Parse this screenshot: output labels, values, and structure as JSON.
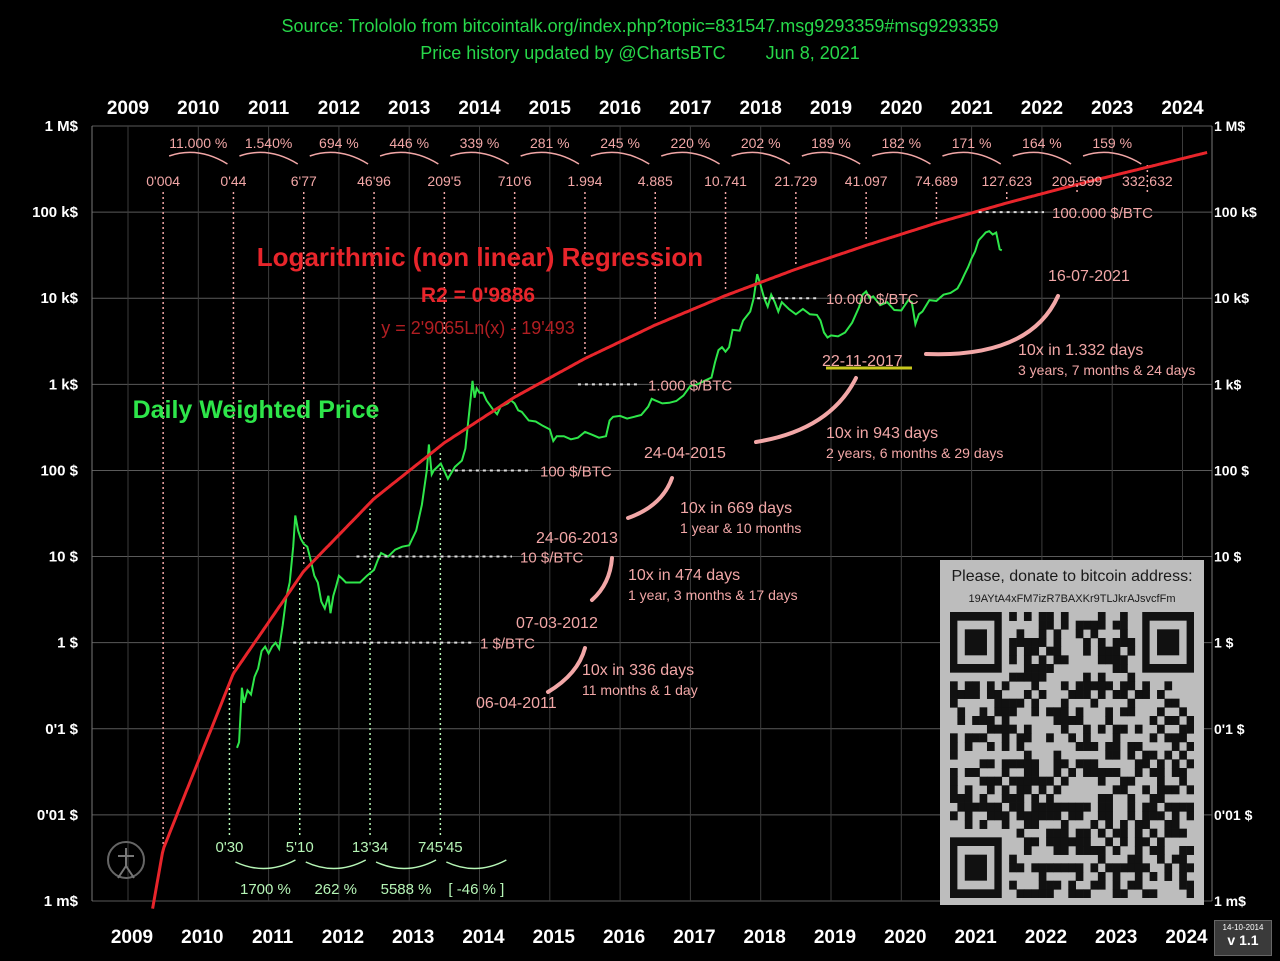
{
  "header": {
    "source": "Source: Trolololo from bitcointalk.org/index.php?topic=831547.msg9293359#msg9293359",
    "updated": "Price history updated by @ChartsBTC",
    "date": "Jun 8, 2021"
  },
  "donate": {
    "title": "Please, donate to bitcoin address:",
    "address": "19AYtA4xFM7izR7BAXKr9TLJkrAJsvcfFm"
  },
  "version": {
    "date": "14-10-2014",
    "label": "v 1.1"
  },
  "colors": {
    "background": "#000000",
    "price": "#2ee64a",
    "regression": "#e8252b",
    "annotation": "#f2a7a7",
    "price_annotation": "#b6f5b6",
    "underline": "#c8c81e"
  },
  "chart_data": {
    "type": "line",
    "title": "Logarithmic (non linear) Regression",
    "r2": "R2 = 0'9886",
    "equation": "y = 2'9065Ln(x) - 19'493",
    "price_label": "Daily Weighted Price",
    "y_scale": "log",
    "ylim_usd": [
      0.001,
      1000000
    ],
    "xlim_years": [
      2009,
      2024
    ],
    "x_ticks_top": [
      "2009",
      "2010",
      "2011",
      "2012",
      "2013",
      "2014",
      "2015",
      "2016",
      "2017",
      "2018",
      "2019",
      "2020",
      "2021",
      "2022",
      "2023",
      "2024"
    ],
    "x_ticks_bottom": [
      "2009",
      "2010",
      "2011",
      "2012",
      "2013",
      "2014",
      "2015",
      "2016",
      "2017",
      "2018",
      "2019",
      "2020",
      "2021",
      "2022",
      "2023",
      "2024"
    ],
    "y_ticks_left": [
      {
        "value": 1000000,
        "label": "1 M$"
      },
      {
        "value": 100000,
        "label": "100 k$"
      },
      {
        "value": 10000,
        "label": "10 k$"
      },
      {
        "value": 1000,
        "label": "1 k$"
      },
      {
        "value": 100,
        "label": "100 $"
      },
      {
        "value": 10,
        "label": "10 $"
      },
      {
        "value": 1,
        "label": "1 $"
      },
      {
        "value": 0.1,
        "label": "0'1 $"
      },
      {
        "value": 0.01,
        "label": "0'01 $"
      },
      {
        "value": 0.001,
        "label": "1 m$"
      }
    ],
    "y_ticks_right": [
      {
        "value": 1000000,
        "label": "1 M$"
      },
      {
        "value": 100000,
        "label": "100 k$"
      },
      {
        "value": 10000,
        "label": "10 k$"
      },
      {
        "value": 1000,
        "label": "1 k$"
      },
      {
        "value": 100,
        "label": "100 $"
      },
      {
        "value": 10,
        "label": "10 $"
      },
      {
        "value": 1,
        "label": "1 $"
      },
      {
        "value": 0.1,
        "label": "0'1 $"
      },
      {
        "value": 0.01,
        "label": "0'01 $"
      },
      {
        "value": 0.001,
        "label": "1 m$"
      }
    ],
    "regression_values": [
      {
        "year": 2009.5,
        "label": "0'004",
        "value": 0.004
      },
      {
        "year": 2010.5,
        "label": "0'44",
        "value": 0.44
      },
      {
        "year": 2011.5,
        "label": "6'77",
        "value": 6.77
      },
      {
        "year": 2012.5,
        "label": "46'96",
        "value": 46.96
      },
      {
        "year": 2013.5,
        "label": "209'5",
        "value": 209.5
      },
      {
        "year": 2014.5,
        "label": "710'6",
        "value": 710.6
      },
      {
        "year": 2015.5,
        "label": "1.994",
        "value": 1994
      },
      {
        "year": 2016.5,
        "label": "4.885",
        "value": 4885
      },
      {
        "year": 2017.5,
        "label": "10.741",
        "value": 10741
      },
      {
        "year": 2018.5,
        "label": "21.729",
        "value": 21729
      },
      {
        "year": 2019.5,
        "label": "41.097",
        "value": 41097
      },
      {
        "year": 2020.5,
        "label": "74.689",
        "value": 74689
      },
      {
        "year": 2021.5,
        "label": "127.623",
        "value": 127623
      },
      {
        "year": 2022.5,
        "label": "209.599",
        "value": 209599
      },
      {
        "year": 2023.5,
        "label": "332.632",
        "value": 332632
      }
    ],
    "regression_growth": [
      "11.000 %",
      "1.540%",
      "694 %",
      "446 %",
      "339 %",
      "281 %",
      "245 %",
      "220 %",
      "202 %",
      "189 %",
      "182 %",
      "171 %",
      "164 %",
      "159 %"
    ],
    "price_milestones": [
      {
        "year": 2010.5,
        "label": "0'30"
      },
      {
        "year": 2011.5,
        "label": "5'10"
      },
      {
        "year": 2012.5,
        "label": "13'34"
      },
      {
        "year": 2013.5,
        "label": "745'45"
      }
    ],
    "price_growth": [
      "1700 %",
      "262 %",
      "5588 %",
      "[ -46 % ]"
    ],
    "crossings": [
      {
        "price": "1 $/BTC",
        "date": "06-04-2011",
        "value": 1
      },
      {
        "price": "10 $/BTC",
        "date": "07-03-2012",
        "value": 10
      },
      {
        "price": "100 $/BTC",
        "date": "24-06-2013",
        "value": 100
      },
      {
        "price": "1.000 $/BTC",
        "date": "24-04-2015",
        "value": 1000
      },
      {
        "price": "10.000 $/BTC",
        "date": "22-11-2017",
        "value": 10000
      },
      {
        "price": "100.000 $/BTC",
        "date": "16-07-2021",
        "value": 100000
      }
    ],
    "intervals": [
      {
        "text": "10x in 336 days",
        "detail": "11 months & 1 day"
      },
      {
        "text": "10x in 474 days",
        "detail": "1 year, 3 months & 17 days"
      },
      {
        "text": "10x in 669 days",
        "detail": "1 year & 10 months"
      },
      {
        "text": "10x in 943 days",
        "detail": "2 years, 6 months & 29 days"
      },
      {
        "text": "10x  in 1.332 days",
        "detail": "3 years, 7 months & 24 days"
      }
    ],
    "price_series": [
      [
        2010.55,
        0.06
      ],
      [
        2010.58,
        0.07
      ],
      [
        2010.62,
        0.3
      ],
      [
        2010.65,
        0.2
      ],
      [
        2010.7,
        0.28
      ],
      [
        2010.75,
        0.25
      ],
      [
        2010.8,
        0.4
      ],
      [
        2010.85,
        0.5
      ],
      [
        2010.9,
        0.8
      ],
      [
        2010.95,
        0.9
      ],
      [
        2011.0,
        0.75
      ],
      [
        2011.05,
        0.9
      ],
      [
        2011.1,
        1.0
      ],
      [
        2011.15,
        0.85
      ],
      [
        2011.2,
        1.6
      ],
      [
        2011.25,
        3.3
      ],
      [
        2011.3,
        5
      ],
      [
        2011.35,
        13
      ],
      [
        2011.38,
        30
      ],
      [
        2011.42,
        20
      ],
      [
        2011.46,
        16
      ],
      [
        2011.5,
        14
      ],
      [
        2011.55,
        13
      ],
      [
        2011.6,
        9
      ],
      [
        2011.65,
        6
      ],
      [
        2011.7,
        5
      ],
      [
        2011.75,
        3
      ],
      [
        2011.8,
        2.5
      ],
      [
        2011.85,
        3.5
      ],
      [
        2011.88,
        2.2
      ],
      [
        2011.92,
        3.5
      ],
      [
        2011.96,
        4.5
      ],
      [
        2012.0,
        6
      ],
      [
        2012.05,
        5.5
      ],
      [
        2012.1,
        5
      ],
      [
        2012.2,
        5
      ],
      [
        2012.3,
        5
      ],
      [
        2012.4,
        6
      ],
      [
        2012.5,
        7
      ],
      [
        2012.55,
        9
      ],
      [
        2012.6,
        11
      ],
      [
        2012.7,
        10
      ],
      [
        2012.8,
        12
      ],
      [
        2012.9,
        13
      ],
      [
        2013.0,
        13.5
      ],
      [
        2013.1,
        20
      ],
      [
        2013.18,
        40
      ],
      [
        2013.25,
        100
      ],
      [
        2013.28,
        200
      ],
      [
        2013.32,
        90
      ],
      [
        2013.35,
        100
      ],
      [
        2013.45,
        120
      ],
      [
        2013.55,
        80
      ],
      [
        2013.65,
        110
      ],
      [
        2013.75,
        130
      ],
      [
        2013.8,
        180
      ],
      [
        2013.85,
        450
      ],
      [
        2013.9,
        1100
      ],
      [
        2013.93,
        700
      ],
      [
        2013.96,
        900
      ],
      [
        2014.0,
        800
      ],
      [
        2014.05,
        800
      ],
      [
        2014.1,
        650
      ],
      [
        2014.2,
        500
      ],
      [
        2014.25,
        450
      ],
      [
        2014.3,
        550
      ],
      [
        2014.4,
        600
      ],
      [
        2014.45,
        650
      ],
      [
        2014.5,
        600
      ],
      [
        2014.55,
        500
      ],
      [
        2014.6,
        480
      ],
      [
        2014.7,
        380
      ],
      [
        2014.8,
        370
      ],
      [
        2014.9,
        330
      ],
      [
        2015.0,
        300
      ],
      [
        2015.05,
        220
      ],
      [
        2015.1,
        250
      ],
      [
        2015.2,
        250
      ],
      [
        2015.3,
        230
      ],
      [
        2015.4,
        240
      ],
      [
        2015.5,
        280
      ],
      [
        2015.6,
        260
      ],
      [
        2015.7,
        240
      ],
      [
        2015.8,
        250
      ],
      [
        2015.85,
        380
      ],
      [
        2015.9,
        420
      ],
      [
        2016.0,
        430
      ],
      [
        2016.1,
        400
      ],
      [
        2016.2,
        420
      ],
      [
        2016.3,
        440
      ],
      [
        2016.4,
        550
      ],
      [
        2016.45,
        680
      ],
      [
        2016.5,
        650
      ],
      [
        2016.6,
        600
      ],
      [
        2016.7,
        610
      ],
      [
        2016.8,
        640
      ],
      [
        2016.9,
        740
      ],
      [
        2017.0,
        960
      ],
      [
        2017.1,
        1000
      ],
      [
        2017.2,
        1100
      ],
      [
        2017.3,
        1200
      ],
      [
        2017.35,
        1800
      ],
      [
        2017.4,
        2500
      ],
      [
        2017.45,
        2700
      ],
      [
        2017.5,
        2400
      ],
      [
        2017.55,
        2700
      ],
      [
        2017.6,
        4300
      ],
      [
        2017.7,
        4200
      ],
      [
        2017.75,
        5500
      ],
      [
        2017.85,
        7000
      ],
      [
        2017.9,
        10000
      ],
      [
        2017.95,
        19000
      ],
      [
        2018.0,
        14000
      ],
      [
        2018.05,
        10000
      ],
      [
        2018.1,
        8000
      ],
      [
        2018.15,
        11000
      ],
      [
        2018.2,
        9000
      ],
      [
        2018.25,
        7000
      ],
      [
        2018.3,
        9000
      ],
      [
        2018.4,
        7500
      ],
      [
        2018.5,
        6500
      ],
      [
        2018.6,
        7500
      ],
      [
        2018.7,
        6500
      ],
      [
        2018.8,
        6400
      ],
      [
        2018.85,
        5500
      ],
      [
        2018.9,
        4000
      ],
      [
        2018.95,
        3500
      ],
      [
        2019.0,
        3700
      ],
      [
        2019.1,
        3600
      ],
      [
        2019.2,
        4000
      ],
      [
        2019.3,
        5200
      ],
      [
        2019.4,
        7900
      ],
      [
        2019.45,
        11000
      ],
      [
        2019.5,
        12000
      ],
      [
        2019.55,
        10000
      ],
      [
        2019.6,
        10500
      ],
      [
        2019.7,
        8300
      ],
      [
        2019.8,
        9000
      ],
      [
        2019.9,
        7300
      ],
      [
        2020.0,
        7200
      ],
      [
        2020.1,
        9500
      ],
      [
        2020.15,
        9000
      ],
      [
        2020.2,
        5000
      ],
      [
        2020.25,
        6500
      ],
      [
        2020.3,
        7000
      ],
      [
        2020.4,
        9500
      ],
      [
        2020.5,
        9300
      ],
      [
        2020.6,
        11000
      ],
      [
        2020.7,
        11500
      ],
      [
        2020.8,
        13000
      ],
      [
        2020.85,
        15500
      ],
      [
        2020.9,
        19000
      ],
      [
        2020.95,
        23000
      ],
      [
        2021.0,
        29000
      ],
      [
        2021.05,
        35000
      ],
      [
        2021.1,
        47000
      ],
      [
        2021.15,
        52000
      ],
      [
        2021.2,
        58000
      ],
      [
        2021.25,
        60000
      ],
      [
        2021.3,
        55000
      ],
      [
        2021.35,
        58000
      ],
      [
        2021.4,
        37000
      ],
      [
        2021.43,
        36000
      ]
    ]
  }
}
